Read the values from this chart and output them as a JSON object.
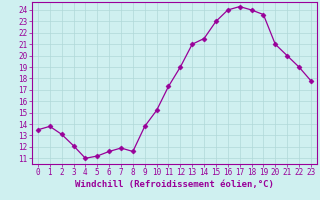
{
  "xlabel": "Windchill (Refroidissement éolien,°C)",
  "x": [
    0,
    1,
    2,
    3,
    4,
    5,
    6,
    7,
    8,
    9,
    10,
    11,
    12,
    13,
    14,
    15,
    16,
    17,
    18,
    19,
    20,
    21,
    22,
    23
  ],
  "y": [
    13.5,
    13.8,
    13.1,
    12.1,
    11.0,
    11.2,
    11.6,
    11.9,
    11.6,
    13.8,
    15.2,
    17.3,
    19.0,
    21.0,
    21.5,
    23.0,
    24.0,
    24.3,
    24.0,
    23.6,
    21.0,
    20.0,
    19.0,
    17.8
  ],
  "line_color": "#990099",
  "marker": "D",
  "markersize": 2.5,
  "linewidth": 0.9,
  "bg_color": "#cff0f0",
  "grid_color": "#b0d8d8",
  "ylim": [
    10.5,
    24.7
  ],
  "xlim": [
    -0.5,
    23.5
  ],
  "yticks": [
    11,
    12,
    13,
    14,
    15,
    16,
    17,
    18,
    19,
    20,
    21,
    22,
    23,
    24
  ],
  "xticks": [
    0,
    1,
    2,
    3,
    4,
    5,
    6,
    7,
    8,
    9,
    10,
    11,
    12,
    13,
    14,
    15,
    16,
    17,
    18,
    19,
    20,
    21,
    22,
    23
  ],
  "tick_fontsize": 5.5,
  "xlabel_fontsize": 6.5
}
